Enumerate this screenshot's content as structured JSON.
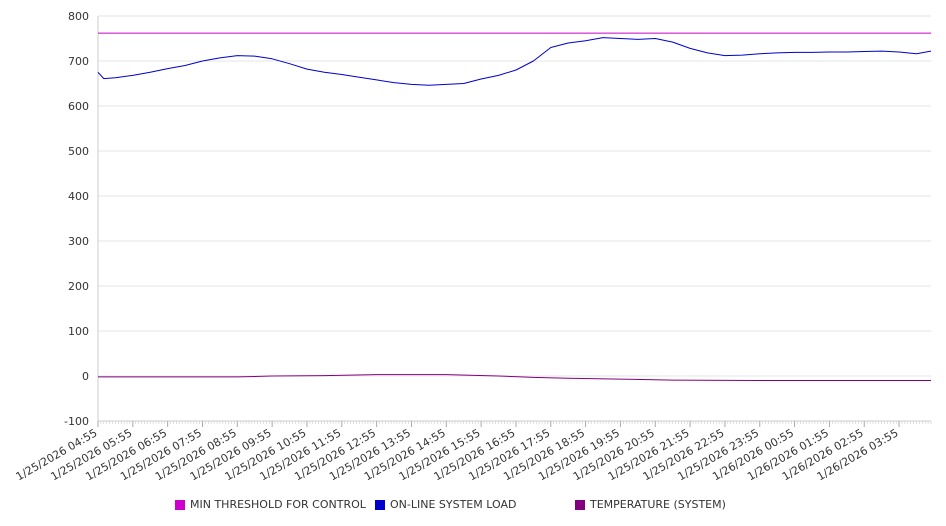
{
  "chart_data": {
    "type": "line",
    "title": "",
    "xlabel": "",
    "ylabel": "",
    "ylim": [
      -100,
      800
    ],
    "yticks": [
      -100,
      0,
      100,
      200,
      300,
      400,
      500,
      600,
      700,
      800
    ],
    "grid": true,
    "legend_position": "bottom",
    "x_tick_labels": [
      "1/25/2026 04:55",
      "1/25/2026 05:55",
      "1/25/2026 06:55",
      "1/25/2026 07:55",
      "1/25/2026 08:55",
      "1/25/2026 09:55",
      "1/25/2026 10:55",
      "1/25/2026 11:55",
      "1/25/2026 12:55",
      "1/25/2026 13:55",
      "1/25/2026 14:55",
      "1/25/2026 15:55",
      "1/25/2026 16:55",
      "1/25/2026 17:55",
      "1/25/2026 18:55",
      "1/25/2026 19:55",
      "1/25/2026 20:55",
      "1/25/2026 21:55",
      "1/25/2026 22:55",
      "1/25/2026 23:55",
      "1/26/2026 00:55",
      "1/26/2026 01:55",
      "1/26/2026 02:55",
      "1/26/2026 03:55"
    ],
    "x_end": "1/26/2026 04:50",
    "series": [
      {
        "name": "MIN THRESHOLD FOR CONTROL",
        "color": "#cc00cc",
        "x": [
          "1/25/2026 04:55",
          "1/26/2026 04:50"
        ],
        "values": [
          762,
          762
        ]
      },
      {
        "name": "ON-LINE SYSTEM LOAD",
        "color": "#0000cc",
        "x": [
          "1/25/2026 04:55",
          "1/25/2026 05:05",
          "1/25/2026 05:25",
          "1/25/2026 05:55",
          "1/25/2026 06:25",
          "1/25/2026 06:55",
          "1/25/2026 07:25",
          "1/25/2026 07:55",
          "1/25/2026 08:25",
          "1/25/2026 08:55",
          "1/25/2026 09:25",
          "1/25/2026 09:55",
          "1/25/2026 10:25",
          "1/25/2026 10:55",
          "1/25/2026 11:25",
          "1/25/2026 11:55",
          "1/25/2026 12:25",
          "1/25/2026 12:55",
          "1/25/2026 13:25",
          "1/25/2026 13:55",
          "1/25/2026 14:25",
          "1/25/2026 14:55",
          "1/25/2026 15:25",
          "1/25/2026 15:55",
          "1/25/2026 16:25",
          "1/25/2026 16:55",
          "1/25/2026 17:25",
          "1/25/2026 17:55",
          "1/25/2026 18:25",
          "1/25/2026 18:55",
          "1/25/2026 19:25",
          "1/25/2026 19:55",
          "1/25/2026 20:25",
          "1/25/2026 20:55",
          "1/25/2026 21:25",
          "1/25/2026 21:55",
          "1/25/2026 22:25",
          "1/25/2026 22:55",
          "1/25/2026 23:25",
          "1/25/2026 23:55",
          "1/26/2026 00:25",
          "1/26/2026 00:55",
          "1/26/2026 01:25",
          "1/26/2026 01:55",
          "1/26/2026 02:25",
          "1/26/2026 02:55",
          "1/26/2026 03:25",
          "1/26/2026 03:55",
          "1/26/2026 04:25",
          "1/26/2026 04:50"
        ],
        "values": [
          675,
          661,
          663,
          668,
          675,
          683,
          690,
          700,
          707,
          712,
          711,
          705,
          694,
          682,
          675,
          670,
          664,
          658,
          652,
          648,
          646,
          648,
          650,
          660,
          668,
          680,
          700,
          730,
          740,
          745,
          752,
          750,
          748,
          750,
          742,
          728,
          718,
          712,
          713,
          716,
          718,
          719,
          719,
          720,
          720,
          721,
          722,
          720,
          716,
          722
        ]
      },
      {
        "name": "TEMPERATURE (SYSTEM)",
        "color": "#800080",
        "x": [
          "1/25/2026 04:55",
          "1/25/2026 06:55",
          "1/25/2026 08:55",
          "1/25/2026 09:55",
          "1/25/2026 11:25",
          "1/25/2026 12:55",
          "1/25/2026 14:55",
          "1/25/2026 16:25",
          "1/25/2026 17:25",
          "1/25/2026 18:25",
          "1/25/2026 19:55",
          "1/25/2026 21:25",
          "1/25/2026 23:55",
          "1/26/2026 02:55",
          "1/26/2026 04:50"
        ],
        "values": [
          -2,
          -2,
          -2,
          0,
          1,
          3,
          3,
          0,
          -3,
          -5,
          -7,
          -9,
          -10,
          -10,
          -10
        ]
      }
    ]
  }
}
